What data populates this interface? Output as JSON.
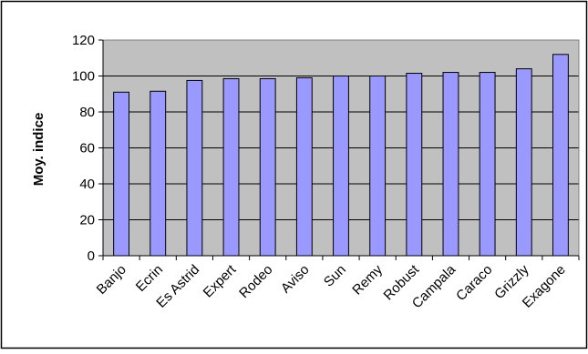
{
  "chart_data": {
    "type": "bar",
    "title": "",
    "xlabel": "",
    "ylabel": "Moy. indice",
    "ylim": [
      0,
      120
    ],
    "yticks": [
      0,
      20,
      40,
      60,
      80,
      100,
      120
    ],
    "grid": true,
    "legend": "none",
    "categories": [
      "Banjo",
      "Ecrin",
      "Es Astrid",
      "Expert",
      "Rodeo",
      "Aviso",
      "Sun",
      "Remy",
      "Robust",
      "Campala",
      "Caraco",
      "Grizzly",
      "Exagone"
    ],
    "values": [
      91,
      91.5,
      97.5,
      98.5,
      98.5,
      99,
      100,
      100,
      101.5,
      102,
      102,
      104,
      112
    ],
    "colors": {
      "bar": "#9999ff",
      "plot_bg": "#c0c0c0",
      "grid": "#000000",
      "frame": "#000000"
    }
  }
}
